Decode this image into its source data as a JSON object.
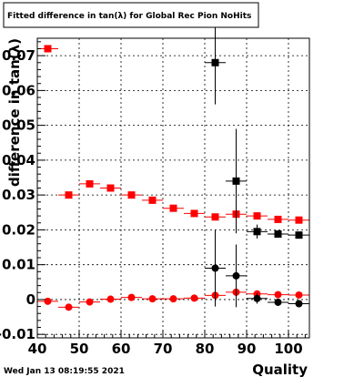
{
  "chart_data": {
    "type": "scatter",
    "title": "Fitted difference in tan(λ) for Global Rec Pion NoHits",
    "xlabel": "Quality",
    "ylabel": "difference in tan(λ)",
    "xlim": [
      40,
      105
    ],
    "ylim": [
      -0.011,
      0.075
    ],
    "grid": true,
    "x_ticks": [
      40,
      50,
      60,
      70,
      80,
      90,
      100
    ],
    "x_tick_labels": [
      "40",
      "50",
      "60",
      "70",
      "80",
      "90",
      "100"
    ],
    "y_ticks": [
      -0.01,
      0,
      0.01,
      0.02,
      0.03,
      0.04,
      0.05,
      0.06,
      0.07
    ],
    "y_tick_labels": [
      "-0.01",
      "0",
      "0.01",
      "0.02",
      "0.03",
      "0.04",
      "0.05",
      "0.06",
      "0.07"
    ],
    "series": [
      {
        "marker": "square",
        "color": "#ff0000",
        "x": [
          42.5,
          47.5,
          52.5,
          57.5,
          62.5,
          67.5,
          72.5,
          77.5,
          82.5,
          87.5,
          92.5,
          97.5,
          102.5
        ],
        "y": [
          0.072,
          0.03,
          0.0332,
          0.032,
          0.03,
          0.0285,
          0.0262,
          0.0247,
          0.0237,
          0.0245,
          0.024,
          0.023,
          0.0228
        ],
        "yerr": [
          0,
          0,
          0,
          0,
          0,
          0,
          0,
          0,
          0,
          0,
          0,
          0,
          0
        ]
      },
      {
        "marker": "circle",
        "color": "#ff0000",
        "x": [
          42.5,
          47.5,
          52.5,
          57.5,
          62.5,
          67.5,
          72.5,
          77.5,
          82.5,
          87.5,
          92.5,
          97.5,
          102.5
        ],
        "y": [
          -0.0005,
          -0.0022,
          -0.0007,
          0.0001,
          0.0006,
          0.0002,
          0.0002,
          0.0004,
          0.0012,
          0.0021,
          0.0016,
          0.0014,
          0.0013
        ],
        "yerr": [
          0,
          0,
          0,
          0,
          0,
          0,
          0,
          0,
          0,
          0,
          0,
          0,
          0
        ]
      },
      {
        "marker": "square",
        "color": "#000000",
        "x": [
          82.5,
          87.5,
          92.5,
          97.5,
          102.5
        ],
        "y": [
          0.068,
          0.034,
          0.0195,
          0.0188,
          0.0185
        ],
        "yerr": [
          0.012,
          0.015,
          0.002,
          0.0008,
          0.0008
        ]
      },
      {
        "marker": "circle",
        "color": "#000000",
        "x": [
          82.5,
          87.5,
          92.5,
          97.5,
          102.5
        ],
        "y": [
          0.009,
          0.0068,
          0.0003,
          -0.0008,
          -0.0012
        ],
        "yerr": [
          0.011,
          0.009,
          0.0015,
          0.0008,
          0.0008
        ]
      }
    ]
  },
  "footer": {
    "timestamp": "Wed Jan 13 08:19:55 2021"
  }
}
